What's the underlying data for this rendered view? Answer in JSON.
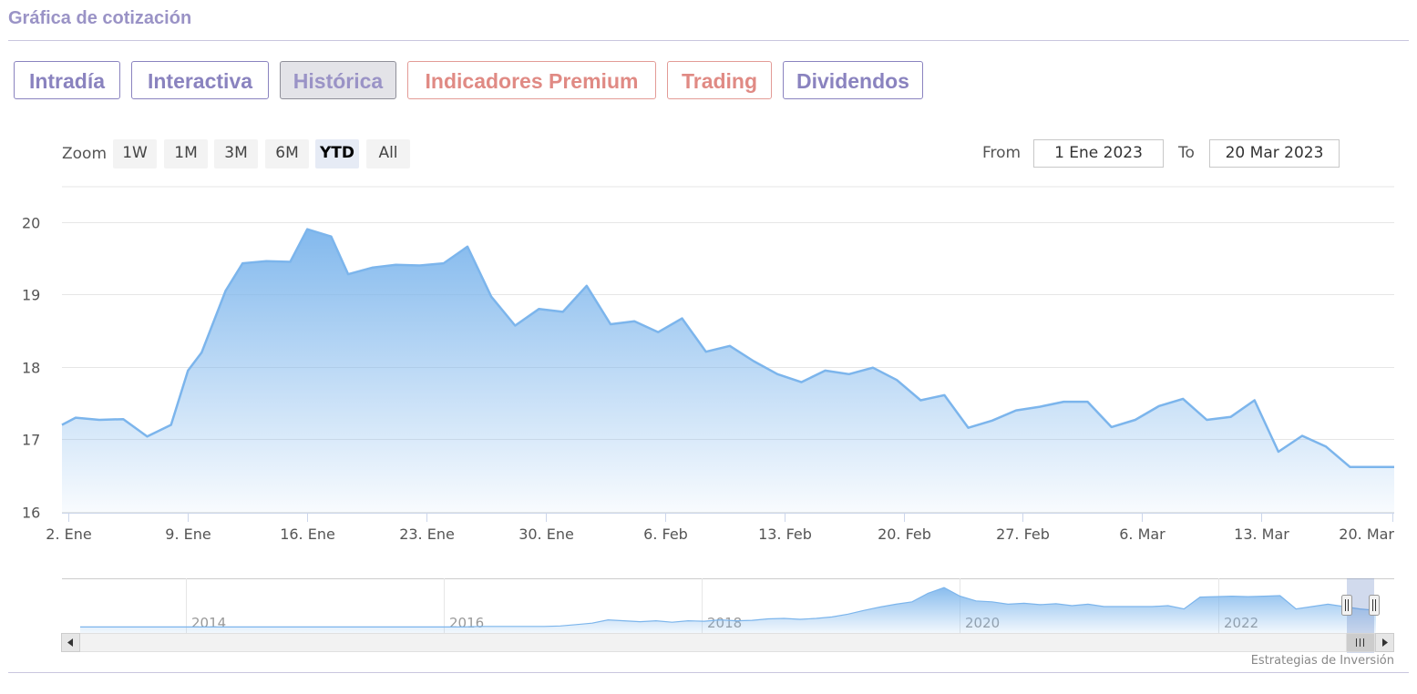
{
  "header": {
    "title": "Gráfica de cotización"
  },
  "tabs": [
    {
      "label": "Intradía",
      "state": "normal"
    },
    {
      "label": "Interactiva",
      "state": "normal"
    },
    {
      "label": "Histórica",
      "state": "active"
    },
    {
      "label": "Indicadores Premium",
      "state": "premium"
    },
    {
      "label": "Trading",
      "state": "premium"
    },
    {
      "label": "Dividendos",
      "state": "normal"
    }
  ],
  "range_selector": {
    "zoom_label": "Zoom",
    "buttons": [
      "1W",
      "1M",
      "3M",
      "6M",
      "YTD",
      "All"
    ],
    "selected": "YTD",
    "from_label": "From",
    "from_value": "1 Ene 2023",
    "to_label": "To",
    "to_value": "20 Mar 2023"
  },
  "colors": {
    "accent": "#8a83bf",
    "premium": "#e08a84",
    "series_line": "#7cb5ec",
    "grid": "#e6e6e6"
  },
  "chart_data": {
    "type": "area",
    "ylim": [
      16,
      20.5
    ],
    "y_ticks": [
      16,
      17,
      18,
      19,
      20
    ],
    "x_start": 0,
    "x_end": 78.2,
    "x_ticks": [
      {
        "x": 0.4,
        "label": "2. Ene"
      },
      {
        "x": 7.4,
        "label": "9. Ene"
      },
      {
        "x": 14.4,
        "label": "16. Ene"
      },
      {
        "x": 21.4,
        "label": "23. Ene"
      },
      {
        "x": 28.4,
        "label": "30. Ene"
      },
      {
        "x": 35.4,
        "label": "6. Feb"
      },
      {
        "x": 42.4,
        "label": "13. Feb"
      },
      {
        "x": 49.4,
        "label": "20. Feb"
      },
      {
        "x": 56.4,
        "label": "27. Feb"
      },
      {
        "x": 63.4,
        "label": "6. Mar"
      },
      {
        "x": 70.4,
        "label": "13. Mar"
      },
      {
        "x": 78.1,
        "label": "20. Mar"
      }
    ],
    "x": [
      0,
      0.8,
      2.2,
      3.6,
      5.0,
      6.4,
      7.4,
      8.2,
      9.6,
      10.6,
      12.0,
      13.4,
      14.4,
      15.8,
      16.8,
      18.2,
      19.6,
      21.0,
      22.4,
      23.8,
      25.2,
      26.6,
      28.0,
      29.4,
      30.8,
      32.2,
      33.6,
      35.0,
      36.4,
      37.8,
      39.2,
      40.6,
      42.0,
      43.4,
      44.8,
      46.2,
      47.6,
      49.0,
      50.4,
      51.8,
      53.2,
      54.6,
      56.0,
      57.4,
      58.8,
      60.2,
      61.6,
      63.0,
      64.4,
      65.8,
      67.2,
      68.6,
      70.0,
      71.4,
      72.8,
      74.2,
      75.6,
      77.0,
      78.2
    ],
    "y": [
      17.2,
      17.3,
      17.27,
      17.28,
      17.04,
      17.2,
      17.95,
      18.2,
      19.05,
      19.43,
      19.46,
      19.45,
      19.9,
      19.8,
      19.28,
      19.37,
      19.41,
      19.4,
      19.43,
      19.66,
      18.97,
      18.57,
      18.8,
      18.76,
      19.12,
      18.59,
      18.63,
      18.48,
      18.67,
      18.21,
      18.29,
      18.08,
      17.9,
      17.79,
      17.95,
      17.9,
      17.99,
      17.82,
      17.54,
      17.61,
      17.16,
      17.26,
      17.4,
      17.45,
      17.52,
      17.52,
      17.17,
      17.27,
      17.46,
      17.56,
      17.27,
      17.31,
      17.54,
      16.83,
      17.05,
      16.9,
      16.62,
      16.62,
      16.62
    ],
    "navigator": {
      "year_labels": [
        "2014",
        "2016",
        "2018",
        "2020",
        "2022"
      ],
      "values": [
        0.07,
        0.07,
        0.07,
        0.07,
        0.07,
        0.07,
        0.07,
        0.07,
        0.07,
        0.07,
        0.07,
        0.07,
        0.07,
        0.07,
        0.07,
        0.07,
        0.07,
        0.07,
        0.07,
        0.07,
        0.07,
        0.07,
        0.07,
        0.07,
        0.07,
        0.08,
        0.08,
        0.08,
        0.08,
        0.08,
        0.09,
        0.12,
        0.15,
        0.22,
        0.2,
        0.18,
        0.2,
        0.17,
        0.2,
        0.19,
        0.22,
        0.2,
        0.21,
        0.24,
        0.25,
        0.23,
        0.25,
        0.28,
        0.34,
        0.42,
        0.49,
        0.55,
        0.6,
        0.78,
        0.9,
        0.72,
        0.62,
        0.6,
        0.55,
        0.57,
        0.54,
        0.56,
        0.52,
        0.55,
        0.5,
        0.5,
        0.5,
        0.5,
        0.52,
        0.45,
        0.7,
        0.71,
        0.72,
        0.71,
        0.72,
        0.73,
        0.45,
        0.5,
        0.55,
        0.5,
        0.45,
        0.42
      ]
    }
  },
  "credits": "Estrategias de Inversión"
}
